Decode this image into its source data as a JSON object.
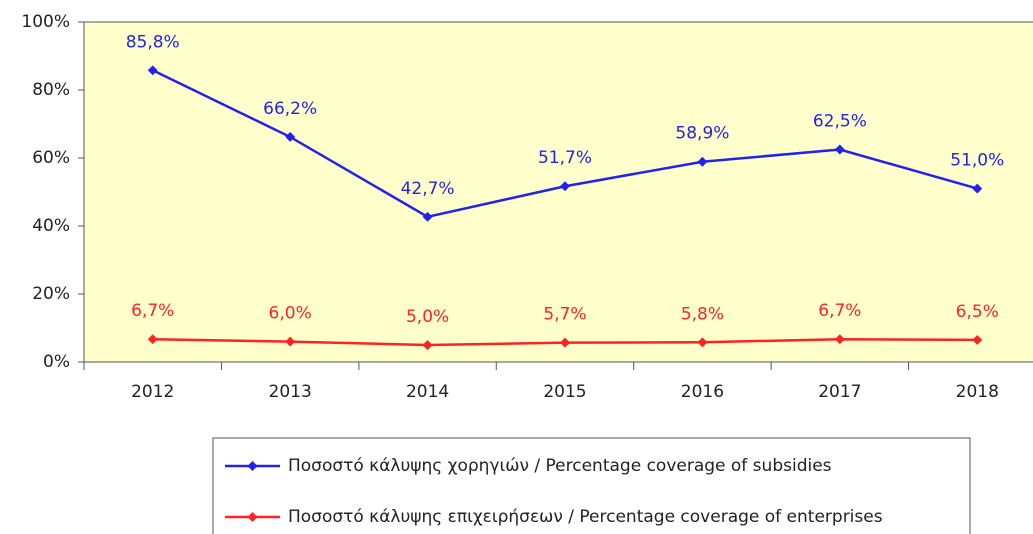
{
  "chart_data": {
    "type": "line",
    "categories": [
      "2012",
      "2013",
      "2014",
      "2015",
      "2016",
      "2017",
      "2018"
    ],
    "series": [
      {
        "name": "Ποσοστό κάλυψης χορηγιών / Percentage coverage of subsidies",
        "color": "#2222ee",
        "values": [
          85.8,
          66.2,
          42.7,
          51.7,
          58.9,
          62.5,
          51.0
        ],
        "value_labels": [
          "85,8%",
          "66,2%",
          "42,7%",
          "51,7%",
          "58,9%",
          "62,5%",
          "51,0%"
        ]
      },
      {
        "name": "Ποσοστό κάλυψης επιχειρήσεων / Percentage coverage of enterprises",
        "color": "#ff2222",
        "values": [
          6.7,
          6.0,
          5.0,
          5.7,
          5.8,
          6.7,
          6.5
        ],
        "value_labels": [
          "6,7%",
          "6,0%",
          "5,0%",
          "5,7%",
          "5,8%",
          "6,7%",
          "6,5%"
        ]
      }
    ],
    "ylim": [
      0,
      100
    ],
    "yticks": [
      {
        "value": 0,
        "label": "0%"
      },
      {
        "value": 20,
        "label": "20%"
      },
      {
        "value": 40,
        "label": "40%"
      },
      {
        "value": 60,
        "label": "60%"
      },
      {
        "value": 80,
        "label": "80%"
      },
      {
        "value": 100,
        "label": "100%"
      }
    ],
    "plot_background": "#ffffcc"
  }
}
